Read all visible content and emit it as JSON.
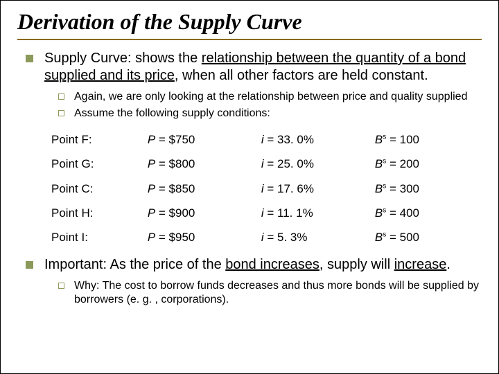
{
  "title": "Derivation of the Supply Curve",
  "bullet1": {
    "pre": "Supply Curve: shows the ",
    "und": "relationship between the quantity of a bond supplied and its price",
    "post": ", when all other factors are held constant."
  },
  "sub1": "Again, we are only looking at the relationship between price and quality supplied",
  "sub2": "Assume the following supply conditions:",
  "table": {
    "rows": [
      {
        "point": "Point F:",
        "p": "P = $750",
        "i": "i = 33. 0%",
        "b_pre": "B",
        "b_sup": "s",
        "b_post": " = 100"
      },
      {
        "point": "Point G:",
        "p": "P = $800",
        "i": "i = 25. 0%",
        "b_pre": "B",
        "b_sup": "s",
        "b_post": " = 200"
      },
      {
        "point": "Point C:",
        "p": "P = $850",
        "i": "i = 17. 6%",
        "b_pre": "B",
        "b_sup": "s",
        "b_post": " = 300"
      },
      {
        "point": "Point H:",
        "p": "P = $900",
        "i": "i = 11. 1%",
        "b_pre": "B",
        "b_sup": "s",
        "b_post": " = 400"
      },
      {
        "point": "Point I:",
        "p": "P = $950",
        "i": "i =  5. 3%",
        "b_pre": "B",
        "b_sup": "s",
        "b_post": " = 500"
      }
    ]
  },
  "bullet2": {
    "pre": "Important: As the price of the ",
    "und": "bond increases",
    "mid": ", supply will ",
    "und2": "increase",
    "post": "."
  },
  "sub3": "Why:  The cost to borrow funds decreases and thus more bonds will be supplied by borrowers (e. g. , corporations)."
}
